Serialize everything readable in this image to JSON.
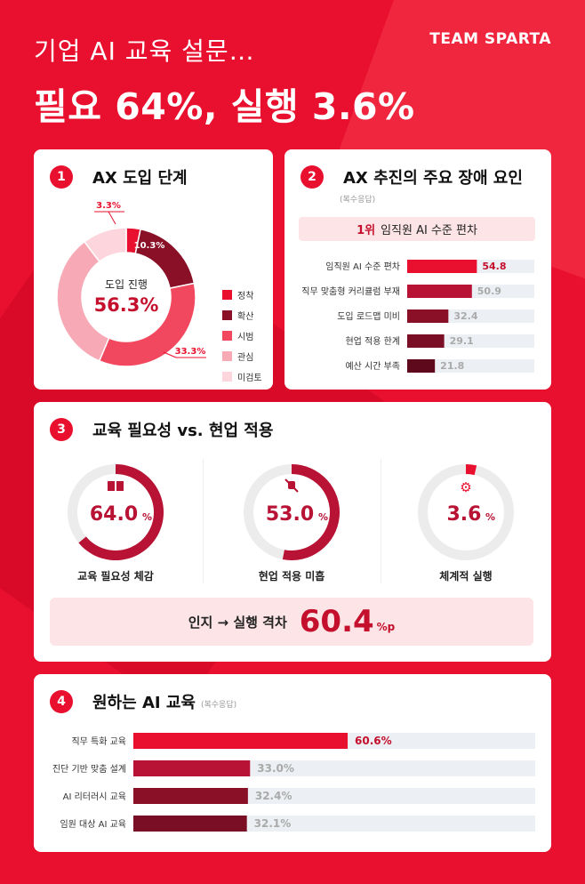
{
  "header": {
    "subtitle": "기업 AI 교육 설문…",
    "title": "필요 64%, 실행 3.6%",
    "logo": "TEAM SPARTA"
  },
  "colors": {
    "background": "#e8102e",
    "red": "#e8102e",
    "crimson": "#b81234",
    "maroon": "#8a1028",
    "pink": "#f7a9b6",
    "light_pink": "#fcd6dc",
    "bar_track": "#eceff3"
  },
  "section1": {
    "number": "1",
    "title": "AX 도입 단계",
    "center_label": "도입 진행",
    "center_value": "56.3%"
  },
  "section2": {
    "number": "2",
    "title": "AX 추진의 주요 장애 요인",
    "note": "(복수응답)",
    "top_rank": "1위",
    "top_item": "임직원 AI 수준 편차"
  },
  "section3": {
    "number": "3",
    "title": "교육 필요성 vs. 현업 적용",
    "gap_label": "인지 → 실행 격차",
    "gap_value": "60.4",
    "gap_unit": "%p"
  },
  "section4": {
    "number": "4",
    "title": "원하는 AI 교육",
    "note": "(복수응답)"
  },
  "chart_data": [
    {
      "type": "pie",
      "title": "AX 도입 단계",
      "categories": [
        "정착",
        "확산",
        "시범",
        "관심",
        "미검토"
      ],
      "values": [
        3.3,
        18.5,
        34.5,
        33.3,
        10.3
      ],
      "value_labels": [
        "3.3%",
        "18.5%",
        "34.5%",
        "33.3%",
        "10.3%"
      ],
      "colors": [
        "#e8102e",
        "#8a1028",
        "#f2485f",
        "#f7a9b6",
        "#fcd6dc"
      ],
      "legend_placement": "right"
    },
    {
      "type": "bar",
      "orientation": "horizontal",
      "title": "AX 추진의 주요 장애 요인",
      "categories": [
        "임직원 AI 수준 편차",
        "직무 맞춤형 커리큘럼 부재",
        "도입 로드맵 미비",
        "현업 적용 한계",
        "예산 시간 부족"
      ],
      "values": [
        54.8,
        50.9,
        32.4,
        29.1,
        21.8
      ],
      "colors": [
        "#e8102e",
        "#b81234",
        "#8a1028",
        "#7a0e24",
        "#5e0a1c"
      ],
      "xlim": [
        0,
        100
      ]
    },
    {
      "type": "pie",
      "subtype": "progress-ring",
      "title": "교육 필요성 vs. 현업 적용",
      "categories": [
        "교육 필요성 체감",
        "현업 적용 미흡",
        "체계적 실행"
      ],
      "values": [
        64.0,
        53.0,
        3.6
      ],
      "icons": [
        "book-icon",
        "no-plug-icon",
        "gear-icon"
      ],
      "colors": [
        "#b81234",
        "#b81234",
        "#e8102e"
      ]
    },
    {
      "type": "bar",
      "orientation": "horizontal",
      "title": "원하는 AI 교육",
      "categories": [
        "직무 특화 교육",
        "진단 기반 맞춤 설계",
        "AI 리터러시 교육",
        "임원 대상 AI 교육"
      ],
      "values": [
        60.6,
        33.0,
        32.4,
        32.1
      ],
      "colors": [
        "#e8102e",
        "#b81234",
        "#8a1028",
        "#7a0e24"
      ],
      "xlim": [
        0,
        100
      ]
    }
  ]
}
